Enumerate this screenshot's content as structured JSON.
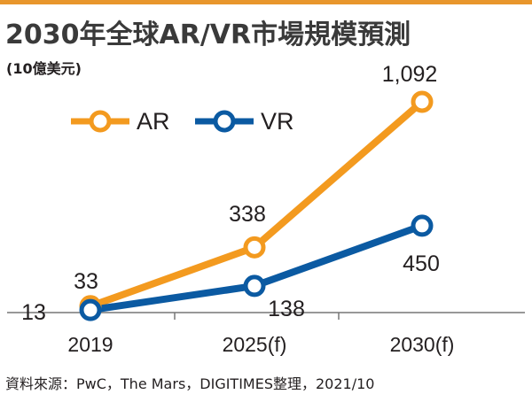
{
  "colors": {
    "header_bar": "#e8962c",
    "ar": "#f39a1f",
    "vr": "#0b5aa2",
    "axis": "#777777"
  },
  "header": {
    "title": "2030年全球AR/VR市場規模預測",
    "unit": "(10億美元)"
  },
  "legend": [
    {
      "label": "AR",
      "series": "AR"
    },
    {
      "label": "VR",
      "series": "VR"
    }
  ],
  "chart_data": {
    "type": "line",
    "title": "2030年全球AR/VR市場規模預測",
    "ylabel": "(10億美元)",
    "categories": [
      "2019",
      "2025(f)",
      "2030(f)"
    ],
    "ylim": [
      0,
      1150
    ],
    "grid": false,
    "legend_position": "top-left",
    "series": [
      {
        "name": "AR",
        "values": [
          33,
          338,
          1092
        ],
        "labels": [
          "33",
          "338",
          "1,092"
        ]
      },
      {
        "name": "VR",
        "values": [
          13,
          138,
          450
        ],
        "labels": [
          "13",
          "138",
          "450"
        ]
      }
    ]
  },
  "source": "資料來源：PwC，The Mars，DIGITIMES整理，2021/10"
}
